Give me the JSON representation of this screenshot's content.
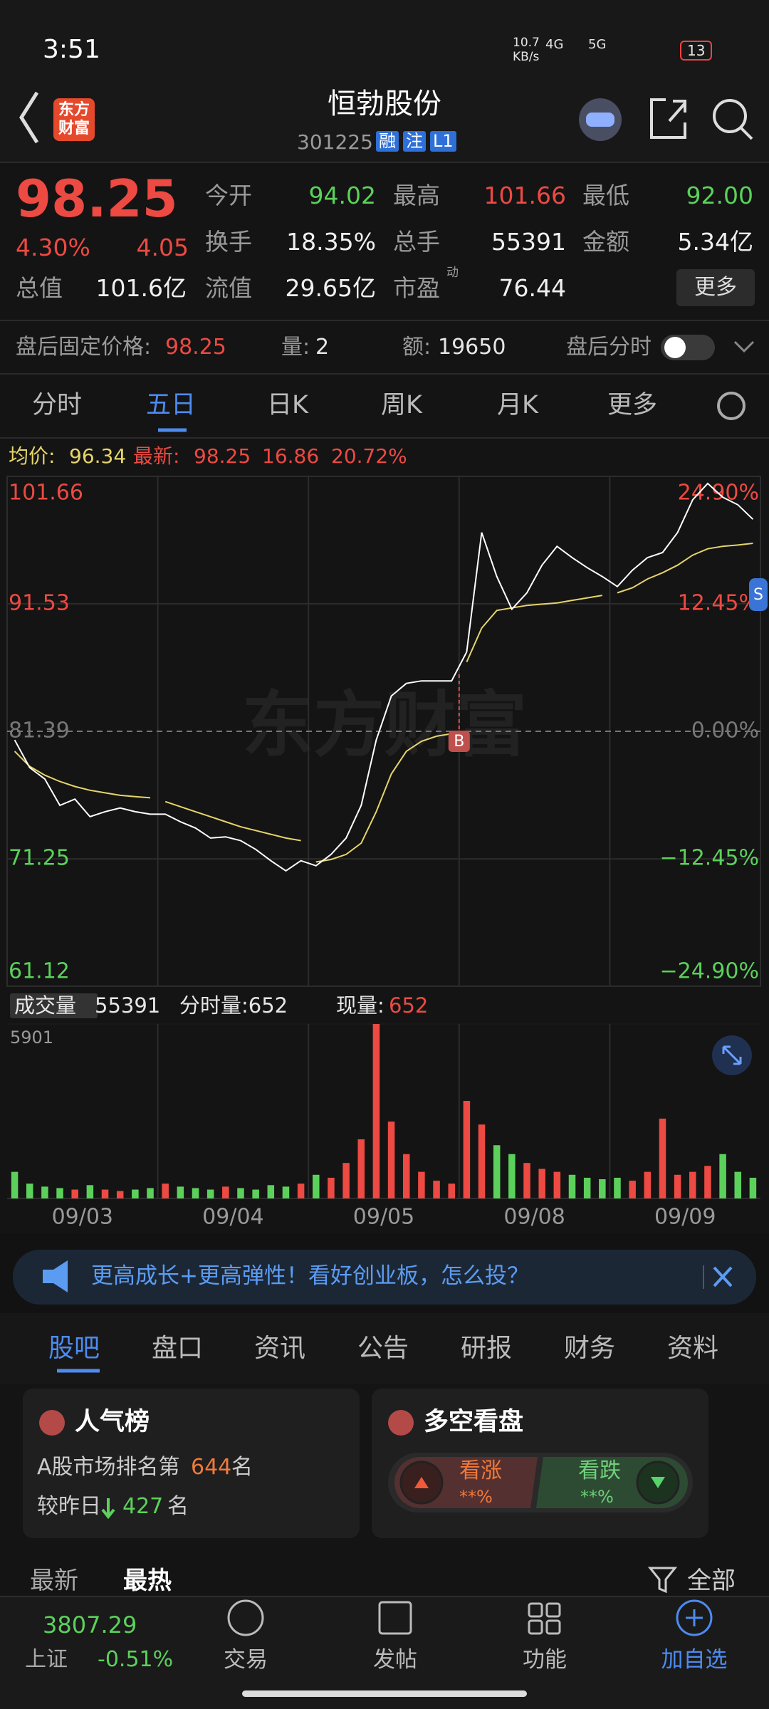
{
  "status_bar": {
    "time": "3:51",
    "speed": "10.7",
    "speed_unit": "KB/s",
    "net1": "4G",
    "net2": "5G",
    "battery": "13"
  },
  "header": {
    "logo": "东方财富",
    "title": "恒勃股份",
    "code": "301225",
    "tags": [
      "融",
      "注",
      "L1"
    ]
  },
  "quote": {
    "price": "98.25",
    "change_pct": "4.30%",
    "change": "4.05",
    "more": "更多",
    "fields": [
      {
        "label": "今开",
        "value": "94.02"
      },
      {
        "label": "最高",
        "value": "101.66"
      },
      {
        "label": "最低",
        "value": "92.00"
      },
      {
        "label": "换手",
        "value": "18.35%"
      },
      {
        "label": "总手",
        "value": "55391"
      },
      {
        "label": "金额",
        "value": "5.34亿"
      },
      {
        "label": "总值",
        "value": "101.6亿"
      },
      {
        "label": "流值",
        "value": "29.65亿"
      },
      {
        "label": "市盈",
        "sup": "动",
        "value": "76.44"
      }
    ]
  },
  "after_hours": {
    "price_label": "盘后固定价格:",
    "price": "98.25",
    "vol_label": "量:",
    "vol": "2",
    "amt_label": "额:",
    "amt": "19650",
    "toggle": "盘后分时"
  },
  "chart_tabs": [
    "分时",
    "五日",
    "日K",
    "周K",
    "月K",
    "更多"
  ],
  "legend": {
    "avg_label": "均价:",
    "avg": "96.34",
    "last_label": "最新:",
    "last": "98.25",
    "chg": "16.86",
    "pct": "20.72%"
  },
  "chart_data": {
    "type": "line",
    "watermark": "东方财富",
    "ylim": [
      61.12,
      101.66
    ],
    "yticks": [
      101.66,
      91.53,
      81.39,
      71.25,
      61.12
    ],
    "pct_labels": [
      "24.90%",
      "12.45%",
      "0.00%",
      "−12.45%",
      "−24.90%"
    ],
    "dates": [
      "09/03",
      "09/04",
      "09/05",
      "09/08",
      "09/09"
    ],
    "price_color": "#ffffff",
    "avg_color": "#e6d56a",
    "price": [
      80.7,
      78.5,
      77.6,
      75.5,
      76.0,
      74.6,
      75.0,
      75.3,
      75.0,
      74.8,
      74.8,
      74.2,
      73.7,
      72.9,
      73.0,
      72.7,
      72.0,
      71.1,
      70.3,
      71.1,
      70.7,
      71.6,
      72.9,
      75.5,
      80.7,
      84.2,
      85.2,
      85.4,
      85.4,
      85.4,
      87.7,
      97.2,
      93.7,
      91.1,
      92.4,
      94.6,
      96.1,
      95.2,
      94.4,
      93.7,
      92.9,
      94.2,
      95.2,
      95.6,
      97.2,
      99.8,
      101.1,
      100.0,
      99.4,
      98.25
    ],
    "avg": [
      79.8,
      78.6,
      77.9,
      77.4,
      77.0,
      76.7,
      76.5,
      76.3,
      76.2,
      76.1,
      75.8,
      75.4,
      75.0,
      74.6,
      74.2,
      73.8,
      73.5,
      73.2,
      72.9,
      72.7,
      71.0,
      71.2,
      71.6,
      72.5,
      75.0,
      78.0,
      79.8,
      80.6,
      81.0,
      81.2,
      86.9,
      89.6,
      91.0,
      91.2,
      91.4,
      91.5,
      91.6,
      91.8,
      92.0,
      92.2,
      92.4,
      92.8,
      93.5,
      94.0,
      94.6,
      95.4,
      95.9,
      96.1,
      96.2,
      96.34
    ],
    "markers": [
      "B",
      "S"
    ],
    "volume": {
      "label": "成交量",
      "total": "55391",
      "tick_label": "分时量:652",
      "now_label": "现量:",
      "now": "652",
      "ylim": [
        0,
        5901
      ],
      "yticks": [
        5901
      ],
      "values": [
        900,
        500,
        400,
        350,
        300,
        450,
        300,
        250,
        300,
        350,
        500,
        400,
        350,
        300,
        400,
        350,
        300,
        450,
        400,
        500,
        800,
        700,
        1200,
        2000,
        5901,
        2600,
        1500,
        900,
        600,
        500,
        3300,
        2500,
        1800,
        1500,
        1200,
        1000,
        900,
        800,
        700,
        650,
        700,
        600,
        900,
        2700,
        800,
        900,
        1100,
        1500,
        900,
        700
      ]
    }
  },
  "banner": "更高成长+更高弹性！看好创业板，怎么投？",
  "tabs": [
    "股吧",
    "盘口",
    "资讯",
    "公告",
    "研报",
    "财务",
    "资料"
  ],
  "card_rank": {
    "title": "人气榜",
    "line1": "A股市场排名第",
    "rank": "644",
    "unit1": "名",
    "line2": "较昨日",
    "delta": "427",
    "unit2": "名"
  },
  "card_vote": {
    "title": "多空看盘",
    "up": "看涨",
    "up_pct": "**%",
    "down": "看跌",
    "down_pct": "**%"
  },
  "feed": {
    "newest": "最新",
    "hottest": "最热",
    "all": "全部"
  },
  "nav": {
    "index_value": "3807.29",
    "index_name": "上证",
    "index_change": "-0.51%",
    "items": [
      "交易",
      "发帖",
      "功能",
      "加自选"
    ]
  }
}
